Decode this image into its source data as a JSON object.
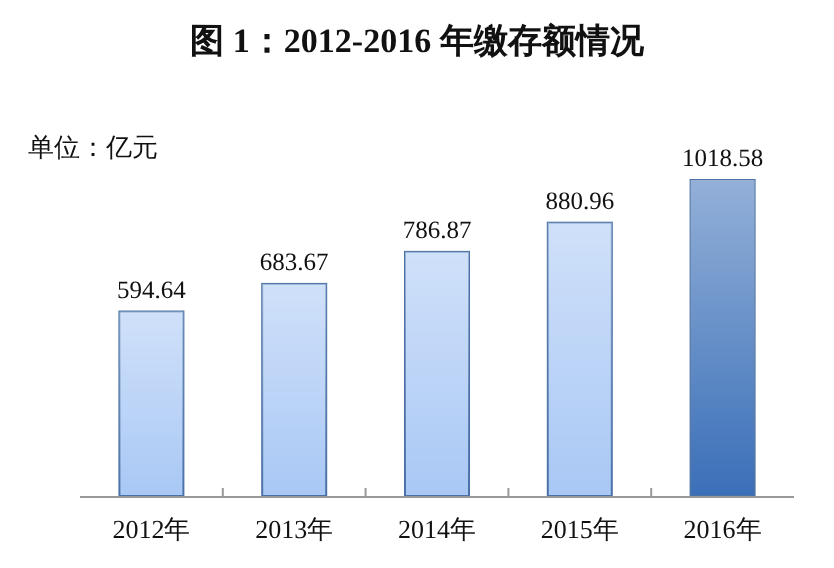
{
  "chart_data": {
    "type": "bar",
    "title": "图 1：2012-2016 年缴存额情况",
    "ylabel": "单位：亿元",
    "categories": [
      "2012年",
      "2013年",
      "2014年",
      "2015年",
      "2016年"
    ],
    "values": [
      594.64,
      683.67,
      786.87,
      880.96,
      1018.58
    ],
    "colors": [
      "#a9c8f5",
      "#a9c8f5",
      "#a9c8f5",
      "#a9c8f5",
      "#3a6fb8"
    ],
    "data_labels": true
  }
}
